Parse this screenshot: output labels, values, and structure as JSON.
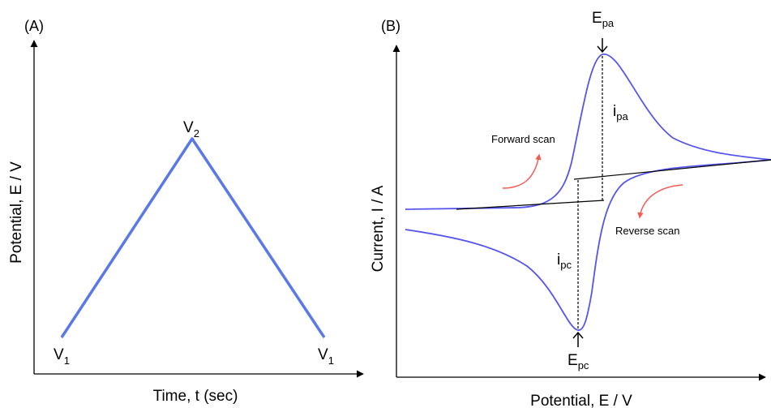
{
  "colors": {
    "curve": "#5a78e6",
    "cv_curve": "#5555ee",
    "scan_arrow": "#f25c54",
    "axis": "#000000"
  },
  "panel_a": {
    "label": "(A)",
    "x_axis_label": "Time, t (sec)",
    "y_axis_label": "Potential, E / V",
    "start_point": {
      "main": "V",
      "sub": "1"
    },
    "peak_point": {
      "main": "V",
      "sub": "2"
    },
    "end_point": {
      "main": "V",
      "sub": "1"
    }
  },
  "panel_b": {
    "label": "(B)",
    "x_axis_label": "Potential, E / V",
    "y_axis_label": "Current, I / A",
    "anodic_peak_potential": {
      "main": "E",
      "sub": "pa"
    },
    "cathodic_peak_potential": {
      "main": "E",
      "sub": "pc"
    },
    "anodic_peak_current": {
      "main": "i",
      "sub": "pa"
    },
    "cathodic_peak_current": {
      "main": "i",
      "sub": "pc"
    },
    "forward_scan_label": "Forward scan",
    "reverse_scan_label": "Reverse scan"
  }
}
